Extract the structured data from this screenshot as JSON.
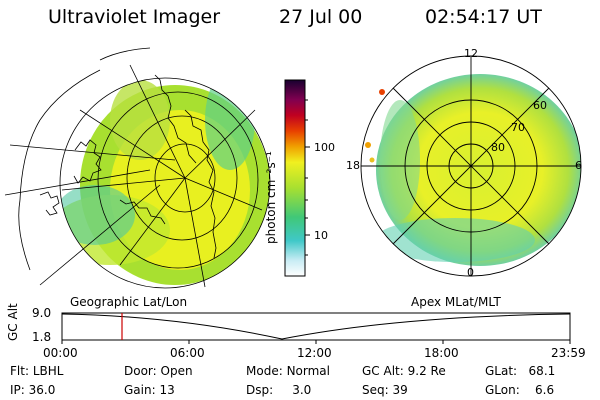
{
  "header": {
    "title": "Ultraviolet Imager",
    "date": "27 Jul 00",
    "time": "02:54:17 UT"
  },
  "colorbar": {
    "label": "photon cm⁻²s⁻¹",
    "ticks": [
      "100",
      "10"
    ]
  },
  "left_panel": {
    "caption": "Geographic Lat/Lon"
  },
  "right_panel": {
    "caption": "Apex MLat/MLT",
    "mlt_labels": [
      "12",
      "18",
      "6",
      "0"
    ],
    "mlat_labels": [
      "60",
      "70",
      "80"
    ]
  },
  "timeline": {
    "axis_label": "GC Alt",
    "y_ticks": [
      "9.0",
      "1.8"
    ],
    "x_ticks": [
      "00:00",
      "06:00",
      "12:00",
      "18:00",
      "23:59"
    ]
  },
  "info": {
    "row1": [
      {
        "label": "Flt:",
        "value": "LBHL"
      },
      {
        "label": "Door:",
        "value": "Open"
      },
      {
        "label": "Mode:",
        "value": "Normal"
      },
      {
        "label": "GC Alt:",
        "value": "9.2 Re"
      },
      {
        "label": "GLat:",
        "value": "68.1"
      }
    ],
    "row2": [
      {
        "label": "IP:",
        "value": "36.0"
      },
      {
        "label": "Gain:",
        "value": "13"
      },
      {
        "label": "Dsp:",
        "value": "3.0"
      },
      {
        "label": "Seq:",
        "value": "39"
      },
      {
        "label": "GLon:",
        "value": "6.6"
      }
    ]
  },
  "colors": {
    "bright": "#e8f020",
    "medium": "#a8e030",
    "green": "#50c878",
    "cyan": "#40c8c8",
    "marker": "#cc0000"
  }
}
